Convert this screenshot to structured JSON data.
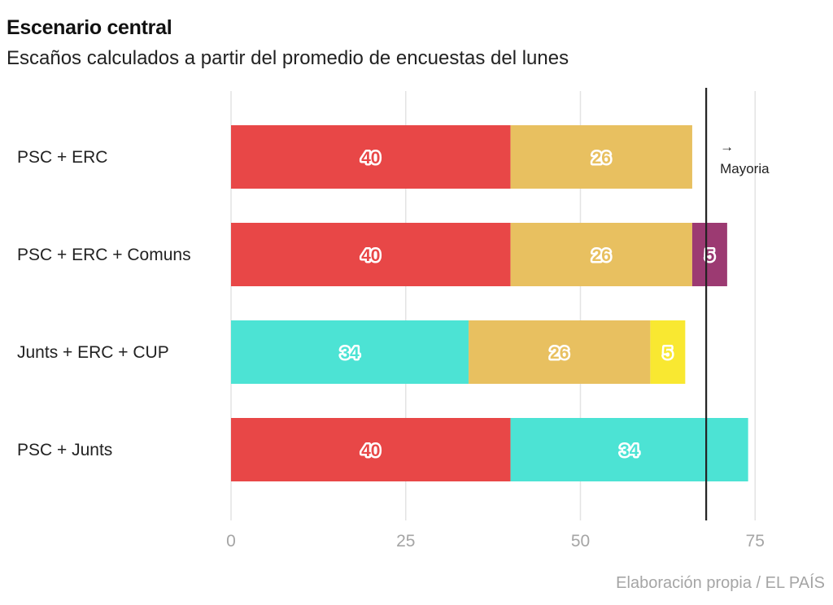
{
  "header": {
    "title": "Escenario central",
    "subtitle": "Escaños calculados a partir del promedio de encuestas del lunes"
  },
  "footer": {
    "source": "Elaboración propia / EL PAÍS"
  },
  "chart_data": {
    "type": "bar",
    "orientation": "horizontal",
    "stacked": true,
    "title": "Escenario central",
    "subtitle": "Escaños calculados a partir del promedio de encuestas del lunes",
    "xlabel": "",
    "ylabel": "",
    "xlim": [
      0,
      80
    ],
    "xticks": [
      0,
      25,
      50,
      75
    ],
    "grid": true,
    "categories": [
      "PSC + ERC",
      "PSC + ERC + Comuns",
      "Junts + ERC + CUP",
      "PSC + Junts"
    ],
    "party_colors": {
      "PSC": "#e84747",
      "ERC": "#e8c060",
      "Comuns": "#9c3a72",
      "Junts": "#4ce3d4",
      "CUP": "#f9e831"
    },
    "rows": [
      {
        "label": "PSC + ERC",
        "segments": [
          {
            "party": "PSC",
            "value": 40
          },
          {
            "party": "ERC",
            "value": 26
          }
        ]
      },
      {
        "label": "PSC + ERC + Comuns",
        "segments": [
          {
            "party": "PSC",
            "value": 40
          },
          {
            "party": "ERC",
            "value": 26
          },
          {
            "party": "Comuns",
            "value": 5
          }
        ]
      },
      {
        "label": "Junts + ERC + CUP",
        "segments": [
          {
            "party": "Junts",
            "value": 34
          },
          {
            "party": "ERC",
            "value": 26
          },
          {
            "party": "CUP",
            "value": 5
          }
        ]
      },
      {
        "label": "PSC + Junts",
        "segments": [
          {
            "party": "PSC",
            "value": 40
          },
          {
            "party": "Junts",
            "value": 34
          }
        ]
      }
    ],
    "reference_line": {
      "value": 68,
      "label": "Mayoria",
      "arrow": "→"
    }
  }
}
